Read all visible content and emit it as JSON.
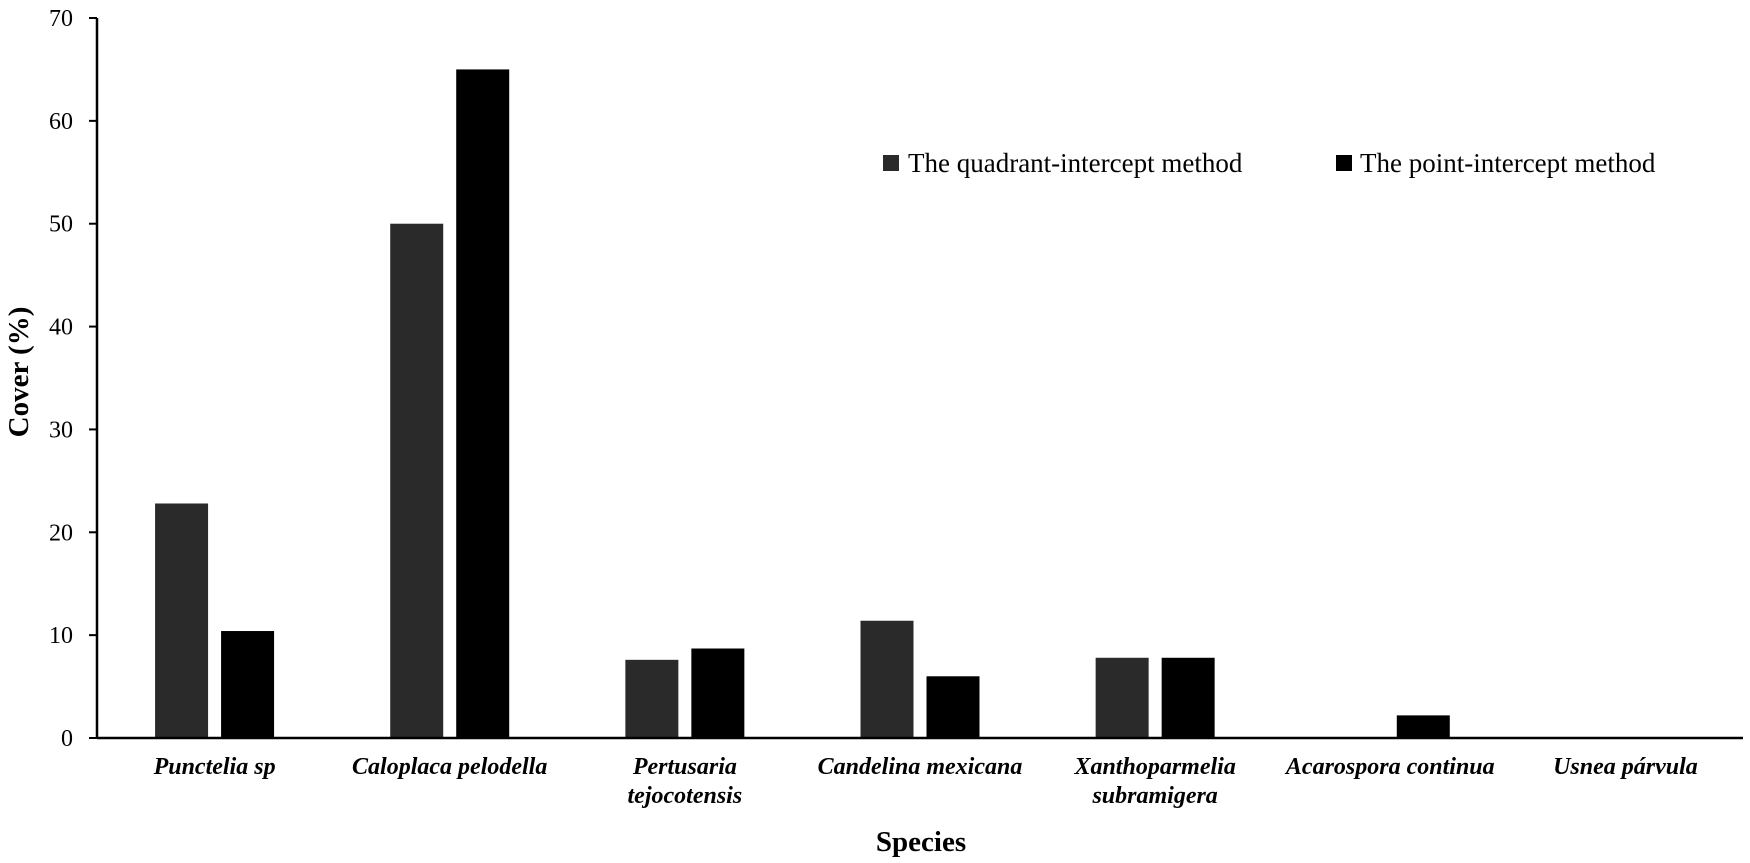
{
  "chart_data": {
    "type": "bar",
    "title": "",
    "xlabel": "Species",
    "ylabel": "Cover (%)",
    "ylim": [
      0,
      70
    ],
    "yticks": [
      0,
      10,
      20,
      30,
      40,
      50,
      60,
      70
    ],
    "grid": false,
    "legend_position": "top-right",
    "categories": [
      [
        "Punctelia sp"
      ],
      [
        "Caloplaca pelodella"
      ],
      [
        "Pertusaria",
        "tejocotensis"
      ],
      [
        "Candelina mexicana"
      ],
      [
        "Xanthoparmelia",
        "subramigera"
      ],
      [
        "Acarospora continua"
      ],
      [
        "Usnea párvula"
      ]
    ],
    "series": [
      {
        "name": "The quadrant-intercept method",
        "color": "#2a2a2a",
        "values": [
          22.8,
          50,
          7.6,
          11.4,
          7.8,
          0,
          0
        ]
      },
      {
        "name": "The point-intercept method",
        "color": "#000000",
        "values": [
          10.4,
          65,
          8.7,
          6,
          7.8,
          2.2,
          0
        ]
      }
    ]
  }
}
